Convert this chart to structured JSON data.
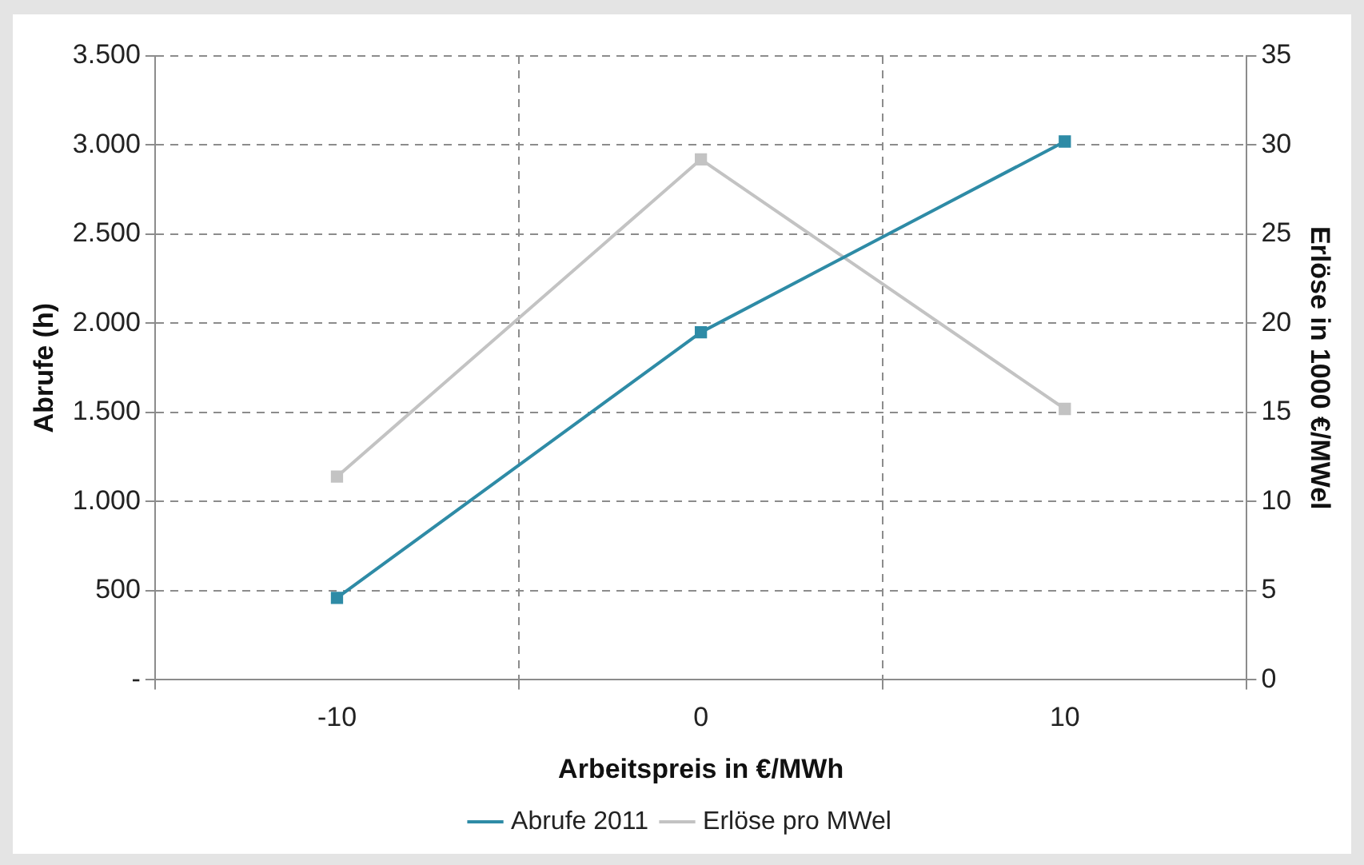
{
  "chart_data": {
    "type": "line",
    "xlabel": "Arbeitspreis in €/MWh",
    "ylabel": "Abrufe (h)",
    "y2label": "Erlöse in 1000 €/MWel",
    "categories": [
      "-10",
      "0",
      "10"
    ],
    "series": [
      {
        "name": "Abrufe 2011",
        "color": "#2e8ba6",
        "values": [
          460,
          1950,
          3020
        ]
      },
      {
        "name": "Erlöse pro MWel",
        "color": "#c3c3c3",
        "values": [
          11.4,
          29.2,
          15.2
        ],
        "axis": "y2"
      }
    ],
    "ylim": [
      0,
      3500
    ],
    "yticks": [
      {
        "value": 0,
        "label": "-"
      },
      500,
      {
        "value": 1000,
        "label": "1.000"
      },
      {
        "value": 1500,
        "label": "1.500"
      },
      {
        "value": 2000,
        "label": "2.000"
      },
      {
        "value": 2500,
        "label": "2.500"
      },
      {
        "value": 3000,
        "label": "3.000"
      },
      {
        "value": 3500,
        "label": "3.500"
      }
    ],
    "y2lim": [
      0,
      35
    ],
    "y2ticks": [
      0,
      5,
      10,
      15,
      20,
      25,
      30,
      35
    ],
    "grid": true,
    "legend": "bottom",
    "marker": "square",
    "line_style": "solid"
  }
}
